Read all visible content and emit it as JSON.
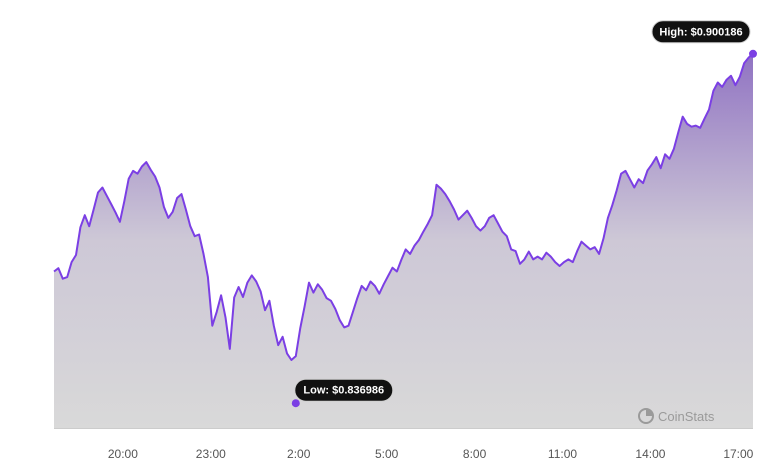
{
  "brand": {
    "name": "CoinStats",
    "icon": "coinstats-logo-icon"
  },
  "colors": {
    "line": "#7b3fe4",
    "area_top": "#8a6bbf",
    "area_bottom": "#d9d9d9",
    "pill_bg": "#111111",
    "pill_border": "#d0d0d0",
    "axis": "#cccccc"
  },
  "chart_data": {
    "type": "area",
    "title": "",
    "xlabel": "",
    "ylabel": "",
    "x_ticks": [
      "20:00",
      "23:00",
      "2:00",
      "5:00",
      "8:00",
      "11:00",
      "14:00",
      "17:00"
    ],
    "x_range": [
      17.65,
      41.5
    ],
    "ylim": [
      0.8325,
      0.9063
    ],
    "grid": false,
    "low": {
      "label": "Low: $0.836986",
      "time": 25.9,
      "value": 0.836986
    },
    "high": {
      "label": "High: $0.900186",
      "time": 41.5,
      "value": 0.900186
    },
    "series": [
      {
        "points": [
          [
            17.65,
            0.8608
          ],
          [
            17.8,
            0.8614
          ],
          [
            17.95,
            0.8595
          ],
          [
            18.1,
            0.8598
          ],
          [
            18.25,
            0.8625
          ],
          [
            18.4,
            0.8638
          ],
          [
            18.55,
            0.8688
          ],
          [
            18.7,
            0.871
          ],
          [
            18.85,
            0.869
          ],
          [
            19.0,
            0.872
          ],
          [
            19.15,
            0.8751
          ],
          [
            19.3,
            0.876
          ],
          [
            19.45,
            0.8745
          ],
          [
            19.6,
            0.873
          ],
          [
            19.75,
            0.8715
          ],
          [
            19.9,
            0.8698
          ],
          [
            20.05,
            0.8735
          ],
          [
            20.2,
            0.8776
          ],
          [
            20.35,
            0.879
          ],
          [
            20.5,
            0.8785
          ],
          [
            20.65,
            0.8798
          ],
          [
            20.8,
            0.8806
          ],
          [
            20.95,
            0.8792
          ],
          [
            21.1,
            0.878
          ],
          [
            21.25,
            0.876
          ],
          [
            21.4,
            0.8725
          ],
          [
            21.55,
            0.8705
          ],
          [
            21.7,
            0.8716
          ],
          [
            21.85,
            0.8741
          ],
          [
            22.0,
            0.8748
          ],
          [
            22.15,
            0.872
          ],
          [
            22.3,
            0.869
          ],
          [
            22.45,
            0.8672
          ],
          [
            22.6,
            0.8675
          ],
          [
            22.75,
            0.864
          ],
          [
            22.9,
            0.8598
          ],
          [
            23.05,
            0.851
          ],
          [
            23.2,
            0.8535
          ],
          [
            23.35,
            0.8565
          ],
          [
            23.5,
            0.8525
          ],
          [
            23.65,
            0.8468
          ],
          [
            23.8,
            0.8561
          ],
          [
            23.95,
            0.858
          ],
          [
            24.1,
            0.8562
          ],
          [
            24.25,
            0.8588
          ],
          [
            24.4,
            0.8601
          ],
          [
            24.55,
            0.859
          ],
          [
            24.7,
            0.8572
          ],
          [
            24.85,
            0.8538
          ],
          [
            25.0,
            0.8555
          ],
          [
            25.15,
            0.851
          ],
          [
            25.3,
            0.8475
          ],
          [
            25.45,
            0.849
          ],
          [
            25.6,
            0.846
          ],
          [
            25.75,
            0.8448
          ],
          [
            25.9,
            0.8455
          ],
          [
            26.05,
            0.8505
          ],
          [
            26.2,
            0.8545
          ],
          [
            26.35,
            0.8588
          ],
          [
            26.5,
            0.857
          ],
          [
            26.65,
            0.8585
          ],
          [
            26.8,
            0.8575
          ],
          [
            26.95,
            0.856
          ],
          [
            27.1,
            0.8555
          ],
          [
            27.25,
            0.854
          ],
          [
            27.4,
            0.852
          ],
          [
            27.55,
            0.8507
          ],
          [
            27.7,
            0.851
          ],
          [
            27.85,
            0.8535
          ],
          [
            28.0,
            0.856
          ],
          [
            28.15,
            0.8582
          ],
          [
            28.3,
            0.8574
          ],
          [
            28.45,
            0.859
          ],
          [
            28.6,
            0.8582
          ],
          [
            28.75,
            0.8568
          ],
          [
            28.9,
            0.8585
          ],
          [
            29.05,
            0.86
          ],
          [
            29.2,
            0.8615
          ],
          [
            29.35,
            0.8608
          ],
          [
            29.5,
            0.8629
          ],
          [
            29.65,
            0.8648
          ],
          [
            29.8,
            0.864
          ],
          [
            29.95,
            0.8655
          ],
          [
            30.1,
            0.8665
          ],
          [
            30.25,
            0.868
          ],
          [
            30.4,
            0.8694
          ],
          [
            30.55,
            0.871
          ],
          [
            30.7,
            0.8765
          ],
          [
            30.85,
            0.8758
          ],
          [
            31.0,
            0.8748
          ],
          [
            31.15,
            0.8735
          ],
          [
            31.3,
            0.872
          ],
          [
            31.45,
            0.8702
          ],
          [
            31.6,
            0.871
          ],
          [
            31.75,
            0.8718
          ],
          [
            31.9,
            0.8705
          ],
          [
            32.05,
            0.869
          ],
          [
            32.2,
            0.8682
          ],
          [
            32.35,
            0.869
          ],
          [
            32.5,
            0.8705
          ],
          [
            32.65,
            0.871
          ],
          [
            32.8,
            0.8695
          ],
          [
            32.95,
            0.868
          ],
          [
            33.1,
            0.8672
          ],
          [
            33.25,
            0.8648
          ],
          [
            33.4,
            0.8645
          ],
          [
            33.55,
            0.8622
          ],
          [
            33.7,
            0.863
          ],
          [
            33.85,
            0.8644
          ],
          [
            34.0,
            0.863
          ],
          [
            34.15,
            0.8635
          ],
          [
            34.3,
            0.863
          ],
          [
            34.45,
            0.8642
          ],
          [
            34.6,
            0.8635
          ],
          [
            34.75,
            0.8625
          ],
          [
            34.9,
            0.8618
          ],
          [
            35.05,
            0.8625
          ],
          [
            35.2,
            0.863
          ],
          [
            35.35,
            0.8625
          ],
          [
            35.5,
            0.8645
          ],
          [
            35.65,
            0.8662
          ],
          [
            35.8,
            0.8655
          ],
          [
            35.95,
            0.8648
          ],
          [
            36.1,
            0.8652
          ],
          [
            36.25,
            0.864
          ],
          [
            36.4,
            0.8668
          ],
          [
            36.55,
            0.8705
          ],
          [
            36.7,
            0.8728
          ],
          [
            36.85,
            0.8755
          ],
          [
            37.0,
            0.8785
          ],
          [
            37.15,
            0.879
          ],
          [
            37.3,
            0.8775
          ],
          [
            37.45,
            0.876
          ],
          [
            37.6,
            0.8775
          ],
          [
            37.75,
            0.8768
          ],
          [
            37.9,
            0.8791
          ],
          [
            38.05,
            0.8802
          ],
          [
            38.2,
            0.8815
          ],
          [
            38.35,
            0.8795
          ],
          [
            38.5,
            0.882
          ],
          [
            38.65,
            0.8812
          ],
          [
            38.8,
            0.883
          ],
          [
            38.95,
            0.886
          ],
          [
            39.1,
            0.8888
          ],
          [
            39.25,
            0.8875
          ],
          [
            39.4,
            0.887
          ],
          [
            39.55,
            0.8872
          ],
          [
            39.7,
            0.8868
          ],
          [
            39.85,
            0.8885
          ],
          [
            40.0,
            0.8901
          ],
          [
            40.15,
            0.8935
          ],
          [
            40.3,
            0.895
          ],
          [
            40.45,
            0.8942
          ],
          [
            40.6,
            0.8955
          ],
          [
            40.75,
            0.8962
          ],
          [
            40.9,
            0.8945
          ],
          [
            41.05,
            0.896
          ],
          [
            41.2,
            0.8985
          ],
          [
            41.35,
            0.8995
          ],
          [
            41.5,
            0.9002
          ]
        ]
      }
    ]
  }
}
